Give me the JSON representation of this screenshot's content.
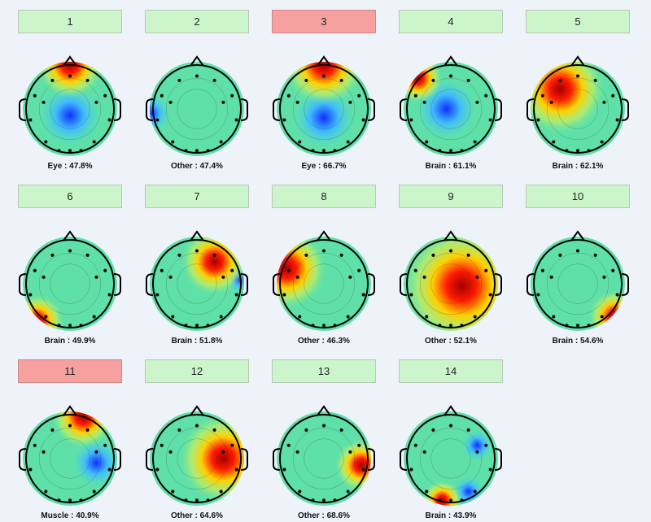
{
  "components": [
    {
      "button": "1",
      "rejected": false,
      "caption": "Eye : 47.8%"
    },
    {
      "button": "2",
      "rejected": false,
      "caption": "Other : 47.4%"
    },
    {
      "button": "3",
      "rejected": true,
      "caption": "Eye : 66.7%"
    },
    {
      "button": "4",
      "rejected": false,
      "caption": "Brain : 61.1%"
    },
    {
      "button": "5",
      "rejected": false,
      "caption": "Brain : 62.1%"
    },
    {
      "button": "6",
      "rejected": false,
      "caption": "Brain : 49.9%"
    },
    {
      "button": "7",
      "rejected": false,
      "caption": "Brain : 51.8%"
    },
    {
      "button": "8",
      "rejected": false,
      "caption": "Other : 46.3%"
    },
    {
      "button": "9",
      "rejected": false,
      "caption": "Other : 52.1%"
    },
    {
      "button": "10",
      "rejected": false,
      "caption": "Brain : 54.6%"
    },
    {
      "button": "11",
      "rejected": true,
      "caption": "Muscle : 40.9%"
    },
    {
      "button": "12",
      "rejected": false,
      "caption": "Other : 64.6%"
    },
    {
      "button": "13",
      "rejected": false,
      "caption": "Other : 68.6%"
    },
    {
      "button": "14",
      "rejected": false,
      "caption": "Brain : 43.9%"
    }
  ]
}
